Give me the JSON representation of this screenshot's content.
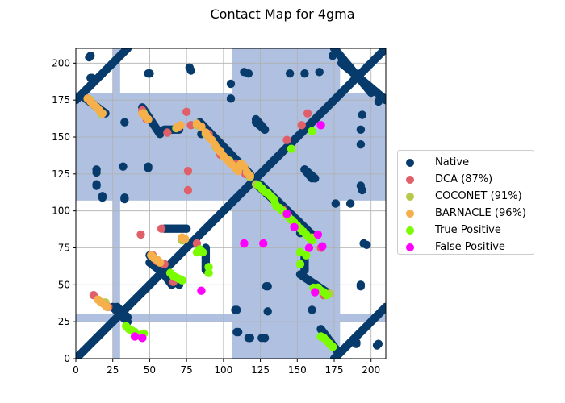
{
  "chart_data": {
    "type": "scatter",
    "title": "Contact Map for 4gma",
    "xlabel": "",
    "ylabel": "",
    "xlim": [
      0,
      210
    ],
    "ylim": [
      0,
      210
    ],
    "grid": true,
    "legend_position": "right",
    "x_ticks": [
      0,
      25,
      50,
      75,
      100,
      125,
      150,
      175,
      200
    ],
    "y_ticks": [
      0,
      25,
      50,
      75,
      100,
      125,
      150,
      175,
      200
    ],
    "bands": {
      "color": "#b0c0e0",
      "vertical": [
        25,
        30,
        106,
        179
      ],
      "horizontal": [
        25,
        30,
        107,
        180
      ]
    },
    "series": [
      {
        "name": "Native",
        "color": "#073b6c",
        "segments": [
          [
            [
              0,
              0
            ],
            [
              210,
              210
            ]
          ],
          [
            [
              175,
              0
            ],
            [
              210,
              35
            ]
          ],
          [
            [
              0,
              175
            ],
            [
              35,
              210
            ]
          ],
          [
            [
              4,
              178
            ],
            [
              20,
              166
            ]
          ],
          [
            [
              178,
              4
            ],
            [
              166,
              20
            ]
          ],
          [
            [
              28,
              35
            ],
            [
              35,
              28
            ]
          ],
          [
            [
              45,
              170
            ],
            [
              57,
              152
            ]
          ],
          [
            [
              170,
              45
            ],
            [
              152,
              57
            ]
          ],
          [
            [
              60,
              155
            ],
            [
              70,
              155
            ]
          ],
          [
            [
              155,
              60
            ],
            [
              155,
              70
            ]
          ],
          [
            [
              84,
              160
            ],
            [
              118,
              125
            ]
          ],
          [
            [
              160,
              84
            ],
            [
              125,
              118
            ]
          ],
          [
            [
              120,
              120
            ],
            [
              160,
              84
            ]
          ],
          [
            [
              25,
              35
            ],
            [
              35,
              25
            ]
          ],
          [
            [
              180,
              200
            ],
            [
              210,
              175
            ]
          ],
          [
            [
              200,
              180
            ],
            [
              175,
              210
            ]
          ],
          [
            [
              60,
              88
            ],
            [
              75,
              88
            ]
          ],
          [
            [
              88,
              60
            ],
            [
              88,
              75
            ]
          ],
          [
            [
              50,
              65
            ],
            [
              70,
              50
            ]
          ],
          [
            [
              65,
              50
            ],
            [
              50,
              70
            ]
          ],
          [
            [
              122,
              160
            ],
            [
              128,
              155
            ]
          ],
          [
            [
              160,
              122
            ],
            [
              155,
              128
            ]
          ],
          [
            [
              155,
              128
            ],
            [
              162,
              122
            ]
          ],
          [
            [
              128,
              155
            ],
            [
              122,
              162
            ]
          ]
        ],
        "points": [
          [
            9,
            204
          ],
          [
            204,
            9
          ],
          [
            11,
            190
          ],
          [
            190,
            11
          ],
          [
            14,
            126
          ],
          [
            126,
            14
          ],
          [
            14,
            118
          ],
          [
            118,
            14
          ],
          [
            18,
            109
          ],
          [
            109,
            18
          ],
          [
            33,
            160
          ],
          [
            160,
            33
          ],
          [
            32,
            130
          ],
          [
            130,
            32
          ],
          [
            33,
            109
          ],
          [
            109,
            33
          ],
          [
            49,
            193
          ],
          [
            193,
            49
          ],
          [
            49,
            129
          ],
          [
            129,
            49
          ],
          [
            77,
            197
          ],
          [
            197,
            77
          ],
          [
            114,
            194
          ],
          [
            194,
            114
          ],
          [
            155,
            193
          ],
          [
            193,
            155
          ],
          [
            174,
            205
          ],
          [
            205,
            174
          ],
          [
            194,
            165
          ],
          [
            165,
            194
          ],
          [
            193,
            145
          ],
          [
            145,
            193
          ],
          [
            193,
            117
          ],
          [
            117,
            193
          ],
          [
            193,
            50
          ],
          [
            50,
            193
          ],
          [
            190,
            10
          ],
          [
            10,
            190
          ],
          [
            205,
            10
          ],
          [
            10,
            205
          ],
          [
            208,
            176
          ],
          [
            176,
            208
          ],
          [
            105,
            186
          ],
          [
            186,
            105
          ],
          [
            105,
            176
          ],
          [
            176,
            105
          ],
          [
            108,
            33
          ],
          [
            33,
            108
          ],
          [
            110,
            18
          ],
          [
            18,
            110
          ],
          [
            117,
            14
          ],
          [
            14,
            117
          ],
          [
            128,
            14
          ],
          [
            14,
            128
          ],
          [
            130,
            49
          ],
          [
            49,
            130
          ],
          [
            195,
            78
          ],
          [
            78,
            195
          ],
          [
            85,
            152
          ],
          [
            152,
            85
          ],
          [
            118,
            123
          ],
          [
            123,
            118
          ],
          [
            142,
            142
          ],
          [
            138,
            138
          ]
        ]
      },
      {
        "name": "DCA (87%)",
        "color": "#e0606a",
        "points": [
          [
            8,
            176
          ],
          [
            44,
            84
          ],
          [
            45,
            168
          ],
          [
            48,
            162
          ],
          [
            52,
            70
          ],
          [
            55,
            66
          ],
          [
            58,
            88
          ],
          [
            60,
            64
          ],
          [
            62,
            153
          ],
          [
            66,
            52
          ],
          [
            70,
            157
          ],
          [
            75,
            167
          ],
          [
            76,
            127
          ],
          [
            78,
            158
          ],
          [
            76,
            114
          ],
          [
            82,
            78
          ],
          [
            85,
            157
          ],
          [
            90,
            152
          ],
          [
            98,
            138
          ],
          [
            108,
            132
          ],
          [
            115,
            125
          ],
          [
            126,
            115
          ],
          [
            133,
            109
          ],
          [
            140,
            101
          ],
          [
            143,
            148
          ],
          [
            147,
            93
          ],
          [
            153,
            158
          ],
          [
            157,
            166
          ],
          [
            166,
            75
          ],
          [
            168,
            43
          ],
          [
            12,
            43
          ],
          [
            18,
            38
          ],
          [
            22,
            35
          ]
        ]
      },
      {
        "name": "COCONET (91%)",
        "color": "#b8c94a",
        "points": [
          [
            10,
            175
          ],
          [
            14,
            170
          ],
          [
            17,
            166
          ],
          [
            20,
            38
          ],
          [
            46,
            166
          ],
          [
            52,
            69
          ],
          [
            56,
            66
          ],
          [
            68,
            156
          ],
          [
            72,
            80
          ],
          [
            82,
            158
          ],
          [
            88,
            152
          ],
          [
            95,
            143
          ],
          [
            104,
            134
          ],
          [
            110,
            130
          ],
          [
            118,
            123
          ],
          [
            122,
            118
          ],
          [
            148,
            90
          ],
          [
            154,
            86
          ],
          [
            160,
            82
          ],
          [
            164,
            48
          ],
          [
            172,
            44
          ]
        ]
      },
      {
        "name": "BARNACLE (96%)",
        "color": "#f5b04c",
        "points": [
          [
            8,
            176
          ],
          [
            10,
            174
          ],
          [
            12,
            172
          ],
          [
            14,
            170
          ],
          [
            16,
            168
          ],
          [
            18,
            166
          ],
          [
            15,
            40
          ],
          [
            17,
            38
          ],
          [
            19,
            37
          ],
          [
            21,
            35
          ],
          [
            45,
            166
          ],
          [
            47,
            164
          ],
          [
            49,
            162
          ],
          [
            51,
            70
          ],
          [
            53,
            68
          ],
          [
            55,
            67
          ],
          [
            57,
            65
          ],
          [
            69,
            157
          ],
          [
            71,
            158
          ],
          [
            72,
            82
          ],
          [
            74,
            81
          ],
          [
            82,
            159
          ],
          [
            85,
            157
          ],
          [
            88,
            153
          ],
          [
            90,
            150
          ],
          [
            92,
            148
          ],
          [
            94,
            145
          ],
          [
            96,
            142
          ],
          [
            98,
            140
          ],
          [
            100,
            137
          ],
          [
            102,
            135
          ],
          [
            104,
            133
          ],
          [
            106,
            131
          ],
          [
            108,
            129
          ],
          [
            110,
            127
          ],
          [
            112,
            132
          ],
          [
            114,
            130
          ],
          [
            116,
            126
          ],
          [
            118,
            124
          ]
        ]
      },
      {
        "name": "True Positive",
        "color": "#7cfc00",
        "points": [
          [
            34,
            22
          ],
          [
            36,
            20
          ],
          [
            38,
            19
          ],
          [
            40,
            18
          ],
          [
            42,
            16
          ],
          [
            44,
            15
          ],
          [
            46,
            17
          ],
          [
            64,
            58
          ],
          [
            66,
            56
          ],
          [
            68,
            55
          ],
          [
            70,
            54
          ],
          [
            72,
            53
          ],
          [
            82,
            72
          ],
          [
            84,
            74
          ],
          [
            86,
            72
          ],
          [
            90,
            62
          ],
          [
            90,
            58
          ],
          [
            124,
            117
          ],
          [
            126,
            115
          ],
          [
            128,
            113
          ],
          [
            130,
            112
          ],
          [
            132,
            110
          ],
          [
            134,
            108
          ],
          [
            135,
            105
          ],
          [
            136,
            103
          ],
          [
            138,
            102
          ],
          [
            140,
            100
          ],
          [
            142,
            98
          ],
          [
            144,
            96
          ],
          [
            146,
            94
          ],
          [
            148,
            92
          ],
          [
            150,
            90
          ],
          [
            152,
            88
          ],
          [
            154,
            86
          ],
          [
            156,
            84
          ],
          [
            158,
            82
          ],
          [
            160,
            80
          ],
          [
            146,
            142
          ],
          [
            152,
            64
          ],
          [
            156,
            70
          ],
          [
            160,
            154
          ],
          [
            161,
            48
          ],
          [
            164,
            48
          ],
          [
            166,
            46
          ],
          [
            168,
            45
          ],
          [
            170,
            43
          ],
          [
            166,
            15
          ],
          [
            168,
            14
          ],
          [
            170,
            12
          ],
          [
            172,
            10
          ],
          [
            174,
            8
          ],
          [
            152,
            72
          ]
        ]
      },
      {
        "name": "False Positive",
        "color": "#ff00ff",
        "points": [
          [
            40,
            15
          ],
          [
            45,
            14
          ],
          [
            85,
            46
          ],
          [
            114,
            78
          ],
          [
            127,
            78
          ],
          [
            143,
            98
          ],
          [
            148,
            89
          ],
          [
            158,
            75
          ],
          [
            162,
            45
          ],
          [
            166,
            158
          ],
          [
            167,
            76
          ],
          [
            164,
            84
          ]
        ]
      }
    ]
  }
}
